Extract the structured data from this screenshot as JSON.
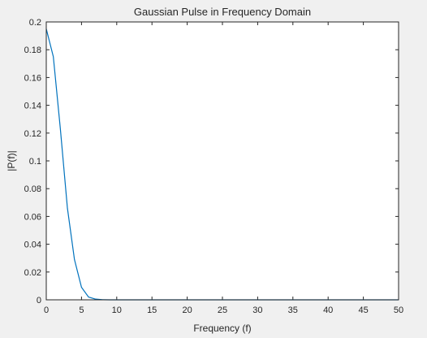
{
  "chart_data": {
    "type": "line",
    "title": "Gaussian Pulse in Frequency Domain",
    "xlabel": "Frequency (f)",
    "ylabel": "|P(f)|",
    "xlim": [
      0,
      50
    ],
    "ylim": [
      0,
      0.2
    ],
    "xticks": [
      "0",
      "5",
      "10",
      "15",
      "20",
      "25",
      "30",
      "35",
      "40",
      "45",
      "50"
    ],
    "yticks": [
      "0",
      "0.02",
      "0.04",
      "0.06",
      "0.08",
      "0.1",
      "0.12",
      "0.14",
      "0.16",
      "0.18",
      "0.2"
    ],
    "grid": false,
    "line_color": "#0072bd",
    "series": [
      {
        "x": [
          0,
          1,
          2,
          3,
          4,
          5,
          6,
          7,
          8,
          9,
          10,
          15,
          20,
          25,
          30,
          35,
          40,
          45,
          50
        ],
        "y": [
          0.195,
          0.175,
          0.123,
          0.066,
          0.029,
          0.009,
          0.002,
          0.0005,
          0.0001,
          0,
          0,
          0,
          0,
          0,
          0,
          0,
          0,
          0,
          0
        ]
      }
    ]
  }
}
